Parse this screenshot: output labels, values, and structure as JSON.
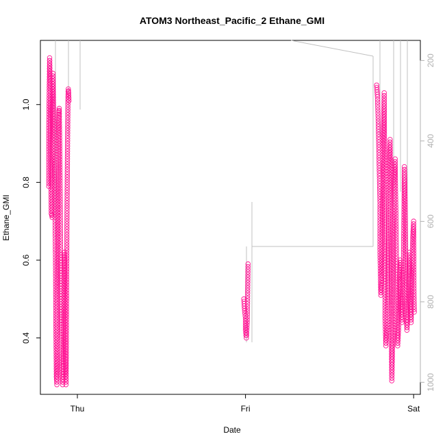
{
  "chart_data": {
    "type": "scatter",
    "title": "ATOM3 Northeast_Pacific_2 Ethane_GMI",
    "xlabel": "Date",
    "ylabel": "Ethane_GMI",
    "x_ticks": [
      {
        "label": "Thu",
        "value": 0.0
      },
      {
        "label": "Fri",
        "value": 1.0
      },
      {
        "label": "Sat",
        "value": 2.0
      }
    ],
    "xlim": [
      -0.22,
      2.04
    ],
    "ylim": [
      0.255,
      1.165
    ],
    "y_ticks": [
      0.4,
      0.6,
      0.8,
      1.0
    ],
    "y2_ticks": [
      200,
      400,
      600,
      800,
      1000
    ],
    "y2lim": [
      1030,
      150
    ],
    "grid": false,
    "marker_color": "#ff1493",
    "line_color": "#c0c0c0",
    "series": [
      {
        "values_desc": "",
        "points": [
          [
            -0.17,
            0.79
          ],
          [
            -0.17,
            0.94
          ],
          [
            -0.165,
            1.12
          ],
          [
            -0.16,
            1.0
          ],
          [
            -0.16,
            0.9
          ],
          [
            -0.155,
            0.72
          ],
          [
            -0.15,
            0.71
          ],
          [
            -0.148,
            0.98
          ],
          [
            -0.145,
            1.08
          ],
          [
            -0.14,
            0.95
          ],
          [
            -0.14,
            0.88
          ],
          [
            -0.135,
            0.8
          ],
          [
            -0.13,
            0.6
          ],
          [
            -0.128,
            0.45
          ],
          [
            -0.125,
            0.3
          ],
          [
            -0.122,
            0.28
          ],
          [
            -0.12,
            0.35
          ],
          [
            -0.118,
            0.55
          ],
          [
            -0.115,
            0.75
          ],
          [
            -0.112,
            0.92
          ],
          [
            -0.11,
            0.98
          ],
          [
            -0.108,
            0.99
          ],
          [
            -0.105,
            0.9
          ],
          [
            -0.102,
            0.75
          ],
          [
            -0.1,
            0.62
          ],
          [
            -0.098,
            0.52
          ],
          [
            -0.095,
            0.4
          ],
          [
            -0.092,
            0.34
          ],
          [
            -0.09,
            0.3
          ],
          [
            -0.088,
            0.28
          ],
          [
            -0.085,
            0.3
          ],
          [
            -0.082,
            0.36
          ],
          [
            -0.08,
            0.5
          ],
          [
            -0.078,
            0.62
          ],
          [
            -0.075,
            0.6
          ],
          [
            -0.072,
            0.47
          ],
          [
            -0.07,
            0.32
          ],
          [
            -0.068,
            0.28
          ],
          [
            -0.066,
            0.35
          ],
          [
            -0.064,
            0.55
          ],
          [
            -0.062,
            0.7
          ],
          [
            -0.06,
            0.82
          ],
          [
            -0.058,
            0.92
          ],
          [
            -0.056,
            1.02
          ],
          [
            -0.054,
            1.04
          ],
          [
            -0.052,
            1.03
          ],
          [
            -0.05,
            1.01
          ],
          [
            0.99,
            0.5
          ],
          [
            0.995,
            0.47
          ],
          [
            1.0,
            0.45
          ],
          [
            1.0,
            0.42
          ],
          [
            1.005,
            0.4
          ],
          [
            1.01,
            0.44
          ],
          [
            1.015,
            0.59
          ],
          [
            1.78,
            1.05
          ],
          [
            1.785,
            1.02
          ],
          [
            1.79,
            0.95
          ],
          [
            1.795,
            0.85
          ],
          [
            1.8,
            0.75
          ],
          [
            1.8,
            0.62
          ],
          [
            1.805,
            0.51
          ],
          [
            1.81,
            0.56
          ],
          [
            1.815,
            0.72
          ],
          [
            1.82,
            0.9
          ],
          [
            1.825,
            1.03
          ],
          [
            1.83,
            0.6
          ],
          [
            1.83,
            0.45
          ],
          [
            1.835,
            0.38
          ],
          [
            1.84,
            0.42
          ],
          [
            1.845,
            0.5
          ],
          [
            1.85,
            0.7
          ],
          [
            1.855,
            0.85
          ],
          [
            1.86,
            0.91
          ],
          [
            1.865,
            0.6
          ],
          [
            1.87,
            0.29
          ],
          [
            1.875,
            0.4
          ],
          [
            1.88,
            0.65
          ],
          [
            1.885,
            0.8
          ],
          [
            1.89,
            0.86
          ],
          [
            1.895,
            0.7
          ],
          [
            1.9,
            0.5
          ],
          [
            1.905,
            0.38
          ],
          [
            1.91,
            0.42
          ],
          [
            1.915,
            0.55
          ],
          [
            1.92,
            0.6
          ],
          [
            1.925,
            0.48
          ],
          [
            1.93,
            0.44
          ],
          [
            1.935,
            0.52
          ],
          [
            1.94,
            0.6
          ],
          [
            1.945,
            0.84
          ],
          [
            1.95,
            0.75
          ],
          [
            1.955,
            0.5
          ],
          [
            1.96,
            0.42
          ],
          [
            1.965,
            0.46
          ],
          [
            1.97,
            0.55
          ],
          [
            1.975,
            0.62
          ],
          [
            1.98,
            0.48
          ],
          [
            1.985,
            0.44
          ],
          [
            1.99,
            0.56
          ],
          [
            1.995,
            0.66
          ],
          [
            2.0,
            0.7
          ],
          [
            2.002,
            0.52
          ],
          [
            2.004,
            0.46
          ]
        ]
      }
    ]
  }
}
